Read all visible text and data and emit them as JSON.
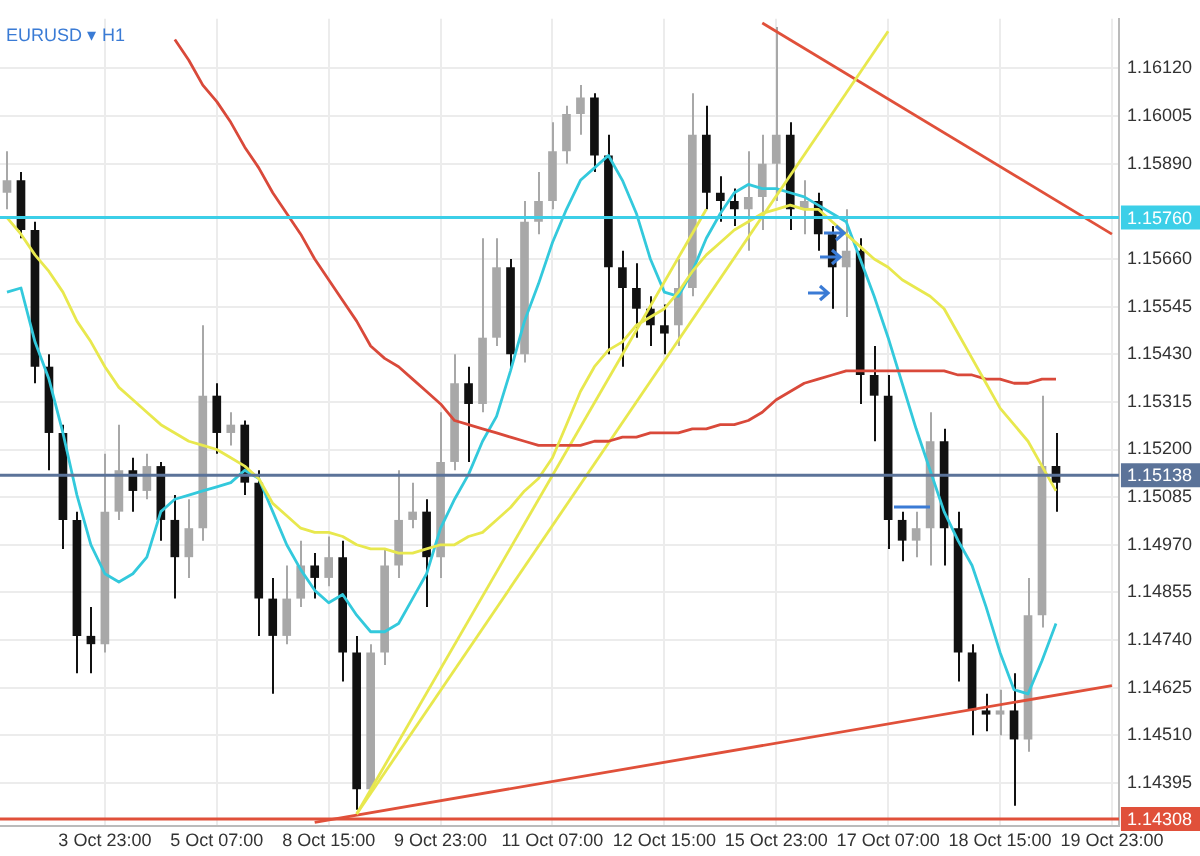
{
  "chart_data": {
    "type": "candlestick",
    "title": "EURUSD ▾ H1",
    "categories": [
      null,
      null,
      null,
      null,
      null,
      null,
      null,
      "3 Oct 23:00",
      null,
      null,
      null,
      null,
      null,
      null,
      null,
      "5 Oct 07:00",
      null,
      null,
      null,
      null,
      null,
      null,
      null,
      "8 Oct 15:00",
      null,
      null,
      null,
      null,
      null,
      null,
      null,
      "9 Oct 23:00",
      null,
      null,
      null,
      null,
      null,
      null,
      null,
      "11 Oct 07:00",
      null,
      null,
      null,
      null,
      null,
      null,
      null,
      "12 Oct 15:00",
      null,
      null,
      null,
      null,
      null,
      null,
      null,
      "15 Oct 23:00",
      null,
      null,
      null,
      null,
      null,
      null,
      null,
      "17 Oct 07:00",
      null,
      null,
      null,
      null,
      null,
      null,
      null,
      "18 Oct 15:00",
      null,
      null,
      null,
      null,
      null,
      null,
      null,
      "19 Oct 23:00"
    ],
    "series": [
      {
        "type": "line",
        "color": "#e8e84e",
        "values": [
          1.1576,
          1.1572,
          1.1567,
          1.1563,
          1.1558,
          1.1551,
          1.1546,
          1.154,
          1.1535,
          1.1532,
          1.1529,
          1.1526,
          1.1524,
          1.1522,
          1.1521,
          1.152,
          1.1518,
          1.1516,
          1.1513,
          1.1507,
          1.1504,
          1.1501,
          1.15,
          1.15,
          1.1499,
          1.1497,
          1.1496,
          1.1496,
          1.1495,
          1.1495,
          1.1496,
          1.1497,
          1.1497,
          1.1499,
          1.15,
          1.1503,
          1.1506,
          1.151,
          1.1513,
          1.1518,
          1.1526,
          1.1534,
          1.154,
          1.1544,
          1.1546,
          1.155,
          1.1552,
          1.1554,
          1.1558,
          1.1563,
          1.1567,
          1.157,
          1.1573,
          1.1575,
          1.1577,
          1.1578,
          1.1579,
          1.1578,
          1.1578,
          1.1575,
          1.1572,
          1.1569,
          1.1566,
          1.1564,
          1.1561,
          1.1559,
          1.1557,
          1.1554,
          1.1548,
          1.1542,
          1.1536,
          1.153,
          1.1526,
          1.1522,
          1.1516,
          1.151,
          null,
          null,
          null,
          null
        ]
      },
      {
        "type": "line",
        "color": "#d9493a",
        "values": [
          null,
          null,
          null,
          null,
          null,
          null,
          null,
          null,
          null,
          null,
          null,
          null,
          1.1619,
          1.1614,
          1.1608,
          1.1604,
          1.1599,
          1.1593,
          1.1588,
          1.1582,
          1.1577,
          1.1572,
          1.1566,
          1.1561,
          1.1556,
          1.1551,
          1.1545,
          1.1542,
          1.154,
          1.1537,
          1.1534,
          1.1531,
          1.1527,
          1.1526,
          1.1525,
          1.1524,
          1.1523,
          1.1522,
          1.1521,
          1.1521,
          1.1521,
          1.1521,
          1.1522,
          1.1522,
          1.1523,
          1.1523,
          1.1524,
          1.1524,
          1.1524,
          1.1525,
          1.1525,
          1.1526,
          1.1526,
          1.1527,
          1.1529,
          1.1532,
          1.1534,
          1.1536,
          1.1537,
          1.1538,
          1.1539,
          1.1539,
          1.1539,
          1.1539,
          1.1539,
          1.1539,
          1.1539,
          1.1539,
          1.1538,
          1.1538,
          1.1537,
          1.1537,
          1.1536,
          1.1536,
          1.1537,
          1.1537,
          null,
          null,
          null,
          null
        ]
      },
      {
        "type": "line",
        "color": "#e8e84e",
        "values": [
          null,
          null,
          null,
          null,
          null,
          null,
          null,
          null,
          null,
          null,
          null,
          null,
          null,
          null,
          null,
          null,
          null,
          null,
          null,
          null,
          null,
          null,
          null,
          null,
          null,
          1.1432,
          null,
          null,
          null,
          null,
          null,
          null,
          null,
          null,
          null,
          null,
          null,
          null,
          null,
          null,
          null,
          null,
          null,
          null,
          null,
          null,
          null,
          null,
          null,
          null,
          1.1578,
          null,
          null,
          null,
          null,
          null,
          null,
          null,
          null,
          null,
          null,
          null,
          null,
          null,
          null,
          null,
          null,
          null,
          null,
          null,
          null,
          null,
          null,
          null,
          null,
          null,
          null,
          null,
          null,
          null
        ]
      },
      {
        "type": "line",
        "color": "#e8e84e",
        "values": [
          null,
          null,
          null,
          null,
          null,
          null,
          null,
          null,
          null,
          null,
          null,
          null,
          null,
          null,
          null,
          null,
          null,
          null,
          null,
          null,
          null,
          null,
          null,
          null,
          null,
          1.1432,
          null,
          null,
          null,
          null,
          null,
          null,
          null,
          null,
          null,
          null,
          null,
          null,
          null,
          null,
          null,
          null,
          null,
          null,
          null,
          null,
          null,
          null,
          null,
          null,
          null,
          null,
          null,
          null,
          null,
          null,
          null,
          null,
          null,
          null,
          null,
          null,
          null,
          1.1621,
          null,
          null,
          null,
          null,
          null,
          null,
          null,
          null,
          null,
          null,
          null,
          null,
          null,
          null,
          null,
          null
        ]
      },
      {
        "type": "line",
        "color": "#e0503a",
        "values": [
          null,
          null,
          null,
          null,
          null,
          null,
          null,
          null,
          null,
          null,
          null,
          null,
          null,
          null,
          null,
          null,
          null,
          null,
          null,
          null,
          null,
          null,
          null,
          null,
          null,
          null,
          null,
          null,
          null,
          null,
          null,
          null,
          null,
          null,
          null,
          null,
          null,
          null,
          null,
          null,
          null,
          null,
          null,
          null,
          null,
          null,
          null,
          null,
          null,
          null,
          null,
          null,
          null,
          null,
          1.1623,
          null,
          null,
          null,
          null,
          null,
          null,
          null,
          null,
          null,
          null,
          null,
          null,
          null,
          null,
          null,
          null,
          null,
          null,
          null,
          null,
          null,
          null,
          null,
          null,
          1.1572
        ]
      },
      {
        "type": "line",
        "color": "#e0503a",
        "values": [
          null,
          null,
          null,
          null,
          null,
          null,
          null,
          null,
          null,
          null,
          null,
          null,
          null,
          null,
          null,
          null,
          null,
          null,
          null,
          null,
          null,
          null,
          1.143,
          null,
          null,
          null,
          null,
          null,
          null,
          null,
          null,
          null,
          null,
          null,
          null,
          null,
          null,
          null,
          null,
          null,
          null,
          null,
          null,
          null,
          null,
          null,
          null,
          null,
          null,
          null,
          null,
          null,
          null,
          null,
          null,
          null,
          null,
          null,
          null,
          null,
          null,
          null,
          null,
          null,
          null,
          null,
          null,
          null,
          null,
          null,
          null,
          null,
          null,
          null,
          null,
          null,
          null,
          null,
          null,
          1.1463
        ]
      },
      {
        "type": "line",
        "color": "#33c9dc",
        "values": [
          1.1558,
          1.1559,
          1.1546,
          1.1537,
          1.1524,
          1.1509,
          1.1497,
          1.149,
          1.1488,
          1.149,
          1.1494,
          1.1505,
          1.1508,
          1.1509,
          1.151,
          1.1511,
          1.1512,
          1.1515,
          1.1513,
          1.1505,
          1.1497,
          1.1491,
          1.1486,
          1.1483,
          1.1485,
          1.148,
          1.1476,
          1.1476,
          1.1478,
          1.1484,
          1.149,
          1.1501,
          1.1508,
          1.1514,
          1.1522,
          1.1528,
          1.1539,
          1.1551,
          1.156,
          1.157,
          1.1578,
          1.1585,
          1.1588,
          1.1591,
          1.1585,
          1.1577,
          1.1566,
          1.1558,
          1.1557,
          1.1563,
          1.1571,
          1.1577,
          1.1582,
          1.1584,
          1.1583,
          1.1583,
          1.1582,
          1.1581,
          1.1579,
          1.1577,
          1.1575,
          1.1566,
          1.1557,
          1.1547,
          1.1536,
          1.1525,
          1.1515,
          1.1505,
          1.1498,
          1.1492,
          1.1482,
          1.1471,
          1.1462,
          1.1461,
          1.1469,
          1.1478,
          null,
          null,
          null,
          null
        ]
      },
      {
        "type": "candlestick",
        "colors": [
          "#a8a8a8",
          "#111111",
          "#111111",
          "#111111",
          "#111111",
          "#111111",
          "#111111",
          "#a8a8a8",
          "#a8a8a8",
          "#111111",
          "#a8a8a8",
          "#111111",
          "#111111",
          "#a8a8a8",
          "#a8a8a8",
          "#111111",
          "#a8a8a8",
          "#111111",
          "#111111",
          "#111111",
          "#a8a8a8",
          "#a8a8a8",
          "#111111",
          "#a8a8a8",
          "#111111",
          "#111111",
          "#a8a8a8",
          "#a8a8a8",
          "#a8a8a8",
          "#a8a8a8",
          "#111111",
          "#a8a8a8",
          "#a8a8a8",
          "#111111",
          "#a8a8a8",
          "#a8a8a8",
          "#111111",
          "#a8a8a8",
          "#a8a8a8",
          "#a8a8a8",
          "#a8a8a8",
          "#a8a8a8",
          "#111111",
          "#111111",
          "#111111",
          "#111111",
          "#111111",
          "#111111",
          "#a8a8a8",
          "#a8a8a8",
          "#111111",
          "#111111",
          "#111111",
          "#a8a8a8",
          "#a8a8a8",
          "#a8a8a8",
          "#111111",
          "#a8a8a8",
          "#111111",
          "#111111",
          "#a8a8a8",
          "#111111",
          "#111111",
          "#111111",
          "#111111",
          "#a8a8a8",
          "#a8a8a8",
          "#111111",
          "#111111",
          "#111111",
          "#111111",
          "#a8a8a8",
          "#111111",
          "#a8a8a8",
          "#a8a8a8",
          "#111111",
          null,
          null,
          null,
          null
        ],
        "ohlc": [
          [
            1.1582,
            1.1592,
            1.1578,
            1.1585
          ],
          [
            1.1585,
            1.1587,
            1.1571,
            1.1573
          ],
          [
            1.1573,
            1.1575,
            1.1536,
            1.154
          ],
          [
            1.154,
            1.1543,
            1.1515,
            1.1524
          ],
          [
            1.1524,
            1.1526,
            1.1496,
            1.1503
          ],
          [
            1.1503,
            1.1505,
            1.1466,
            1.1475
          ],
          [
            1.1475,
            1.1482,
            1.1466,
            1.1473
          ],
          [
            1.1473,
            1.1519,
            1.1471,
            1.1505
          ],
          [
            1.1505,
            1.1526,
            1.1503,
            1.1515
          ],
          [
            1.1515,
            1.1518,
            1.1505,
            1.151
          ],
          [
            1.151,
            1.1519,
            1.1508,
            1.1516
          ],
          [
            1.1516,
            1.1517,
            1.1498,
            1.1503
          ],
          [
            1.1503,
            1.1509,
            1.1484,
            1.1494
          ],
          [
            1.1494,
            1.1508,
            1.1489,
            1.1501
          ],
          [
            1.1501,
            1.155,
            1.1498,
            1.1533
          ],
          [
            1.1533,
            1.1536,
            1.1519,
            1.1524
          ],
          [
            1.1524,
            1.1529,
            1.1521,
            1.1526
          ],
          [
            1.1526,
            1.1527,
            1.1509,
            1.1512
          ],
          [
            1.1512,
            1.1515,
            1.1475,
            1.1484
          ],
          [
            1.1484,
            1.1489,
            1.1461,
            1.1475
          ],
          [
            1.1475,
            1.1492,
            1.1473,
            1.1484
          ],
          [
            1.1484,
            1.1498,
            1.1482,
            1.1492
          ],
          [
            1.1492,
            1.1495,
            1.1484,
            1.1489
          ],
          [
            1.1489,
            1.1499,
            1.1487,
            1.1494
          ],
          [
            1.1494,
            1.1498,
            1.1464,
            1.1471
          ],
          [
            1.1471,
            1.1475,
            1.1433,
            1.1438
          ],
          [
            1.1438,
            1.1473,
            1.1437,
            1.1471
          ],
          [
            1.1471,
            1.1496,
            1.1468,
            1.1492
          ],
          [
            1.1492,
            1.1515,
            1.1489,
            1.1503
          ],
          [
            1.1503,
            1.1512,
            1.1501,
            1.1505
          ],
          [
            1.1505,
            1.1508,
            1.1482,
            1.1494
          ],
          [
            1.1494,
            1.1529,
            1.1489,
            1.1517
          ],
          [
            1.1517,
            1.1543,
            1.1515,
            1.1536
          ],
          [
            1.1536,
            1.154,
            1.1517,
            1.1531
          ],
          [
            1.1531,
            1.1571,
            1.1529,
            1.1547
          ],
          [
            1.1547,
            1.1571,
            1.1545,
            1.1564
          ],
          [
            1.1564,
            1.1566,
            1.154,
            1.1543
          ],
          [
            1.1543,
            1.158,
            1.1541,
            1.1575
          ],
          [
            1.1575,
            1.1587,
            1.1572,
            1.158
          ],
          [
            1.158,
            1.1599,
            1.1578,
            1.1592
          ],
          [
            1.1592,
            1.1603,
            1.1589,
            1.1601
          ],
          [
            1.1601,
            1.1608,
            1.1596,
            1.1605
          ],
          [
            1.1605,
            1.1606,
            1.1587,
            1.1591
          ],
          [
            1.1591,
            1.1596,
            1.1543,
            1.1564
          ],
          [
            1.1564,
            1.1568,
            1.154,
            1.1559
          ],
          [
            1.1559,
            1.1565,
            1.1547,
            1.1554
          ],
          [
            1.1554,
            1.1557,
            1.1545,
            1.155
          ],
          [
            1.155,
            1.1555,
            1.1543,
            1.1548
          ],
          [
            1.155,
            1.1566,
            1.1545,
            1.1559
          ],
          [
            1.1559,
            1.1606,
            1.1557,
            1.1596
          ],
          [
            1.1596,
            1.1603,
            1.1578,
            1.1582
          ],
          [
            1.1582,
            1.1586,
            1.1575,
            1.158
          ],
          [
            1.158,
            1.1583,
            1.1574,
            1.1578
          ],
          [
            1.1578,
            1.1592,
            1.1568,
            1.1581
          ],
          [
            1.1581,
            1.1596,
            1.1573,
            1.1589
          ],
          [
            1.1589,
            1.1622,
            1.158,
            1.1596
          ],
          [
            1.1596,
            1.1599,
            1.1573,
            1.1578
          ],
          [
            1.1578,
            1.1585,
            1.1572,
            1.158
          ],
          [
            1.158,
            1.1582,
            1.1568,
            1.1572
          ],
          [
            1.1572,
            1.1574,
            1.1554,
            1.1564
          ],
          [
            1.1564,
            1.1578,
            1.1552,
            1.1568
          ],
          [
            1.1568,
            1.1571,
            1.1531,
            1.1538
          ],
          [
            1.1538,
            1.1545,
            1.1522,
            1.1533
          ],
          [
            1.1533,
            1.1538,
            1.1496,
            1.1503
          ],
          [
            1.1503,
            1.1505,
            1.1493,
            1.1498
          ],
          [
            1.1498,
            1.1505,
            1.1494,
            1.1501
          ],
          [
            1.1501,
            1.1529,
            1.1492,
            1.1522
          ],
          [
            1.1522,
            1.1525,
            1.1492,
            1.1501
          ],
          [
            1.1501,
            1.1505,
            1.1464,
            1.1471
          ],
          [
            1.1471,
            1.1473,
            1.1451,
            1.1457
          ],
          [
            1.1457,
            1.1461,
            1.1452,
            1.1456
          ],
          [
            1.1456,
            1.1462,
            1.1451,
            1.1457
          ],
          [
            1.1457,
            1.1466,
            1.1434,
            1.145
          ],
          [
            1.145,
            1.1489,
            1.1447,
            1.148
          ],
          [
            1.148,
            1.1533,
            1.1477,
            1.1516
          ],
          [
            1.1516,
            1.1524,
            1.1505,
            1.1512
          ],
          null,
          null,
          null,
          null
        ]
      }
    ],
    "ylim": [
      1.1429,
      1.1624
    ],
    "yticks": [
      {
        "value": 1.14395,
        "label": "1.14395"
      },
      {
        "value": 1.1451,
        "label": "1.14510"
      },
      {
        "value": 1.14625,
        "label": "1.14625"
      },
      {
        "value": 1.1474,
        "label": "1.14740"
      },
      {
        "value": 1.14855,
        "label": "1.14855"
      },
      {
        "value": 1.1497,
        "label": "1.14970"
      },
      {
        "value": 1.15085,
        "label": "1.15085"
      },
      {
        "value": 1.152,
        "label": "1.15200"
      },
      {
        "value": 1.15315,
        "label": "1.15315"
      },
      {
        "value": 1.1543,
        "label": "1.15430"
      },
      {
        "value": 1.15545,
        "label": "1.15545"
      },
      {
        "value": 1.1566,
        "label": "1.15660"
      },
      {
        "value": 1.1589,
        "label": "1.15890"
      },
      {
        "value": 1.16005,
        "label": "1.16005"
      },
      {
        "value": 1.1612,
        "label": "1.16120"
      }
    ],
    "ref_lines": [
      {
        "axis": "y",
        "value": 1.1576,
        "label": "1.15760",
        "color": "#3ccfe8"
      },
      {
        "axis": "y",
        "value": 1.15138,
        "label": "1.15138",
        "color": "#5b7399"
      },
      {
        "axis": "y",
        "value": 1.14308,
        "label": "1.14308",
        "color": "#e0503a"
      }
    ],
    "grid": true,
    "legend": false,
    "marker": "none"
  }
}
